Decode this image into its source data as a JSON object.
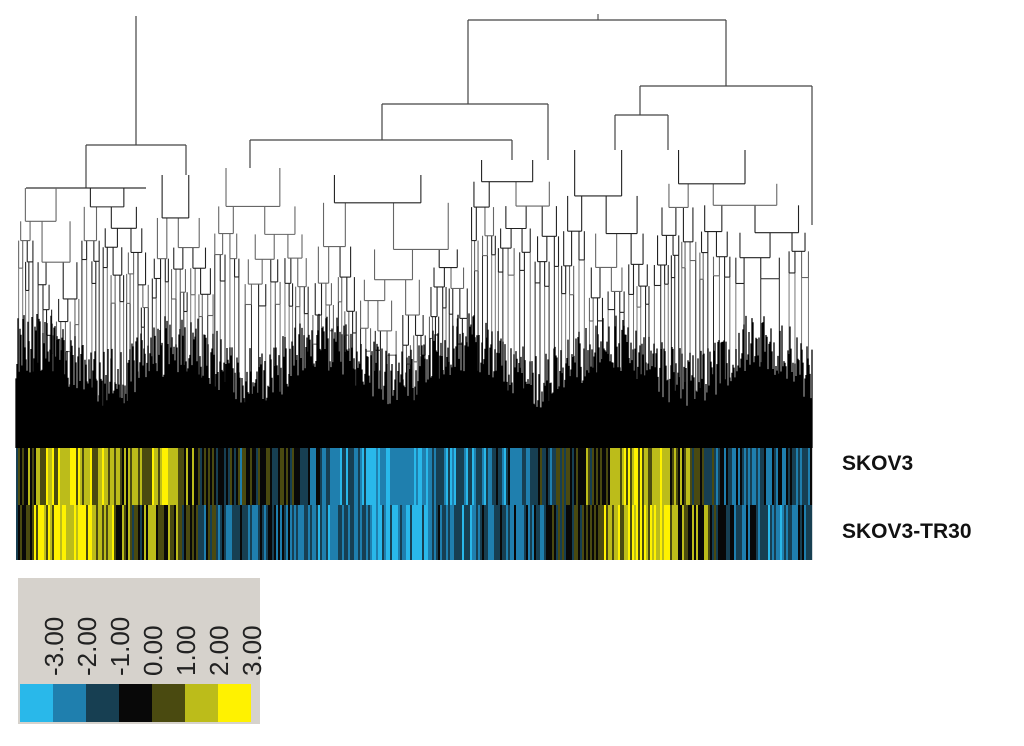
{
  "figure": {
    "rows": [
      {
        "label": "SKOV3"
      },
      {
        "label": "SKOV3-TR30"
      }
    ]
  },
  "legend": {
    "values": [
      "-3.00",
      "-2.00",
      "-1.00",
      "0.00",
      "1.00",
      "2.00",
      "3.00"
    ],
    "colors": [
      "#29b8ea",
      "#1f7fae",
      "#173f52",
      "#080808",
      "#4a4a10",
      "#bcbc1a",
      "#fff200"
    ]
  },
  "heatmap": {
    "colorscale": [
      "#29b8ea",
      "#1f7fae",
      "#173f52",
      "#080808",
      "#4a4a10",
      "#bcbc1a",
      "#fff200"
    ],
    "row_profiles": [
      [
        0.3,
        1.8,
        2.6,
        2.2,
        1.0,
        2.4,
        0.5,
        -0.6,
        -0.3,
        0.2,
        -0.8,
        -1.7,
        -2.6,
        -2.3,
        -1.8,
        -1.9,
        -1.5,
        -1.2,
        -0.5,
        0.3,
        0.8,
        2.2,
        1.6,
        0.4,
        -0.9,
        -1.3,
        -1.1,
        -0.8
      ],
      [
        0.2,
        2.4,
        2.7,
        1.8,
        0.6,
        1.2,
        -0.2,
        -0.8,
        -0.9,
        -1.4,
        -2.1,
        -1.8,
        -2.3,
        -2.5,
        -1.6,
        -1.9,
        -1.3,
        -1.0,
        -0.6,
        0.4,
        1.4,
        2.5,
        2.2,
        0.8,
        -0.4,
        -1.2,
        -1.6,
        -1.0
      ]
    ]
  }
}
